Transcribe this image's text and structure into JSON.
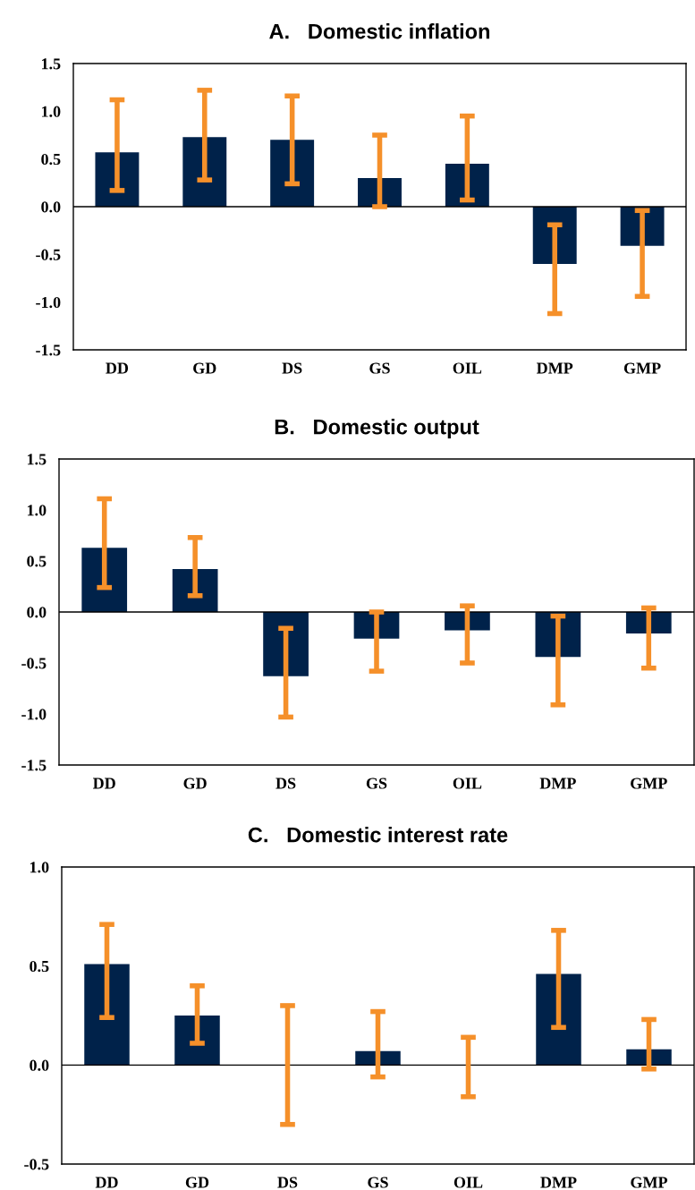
{
  "chart_data": [
    {
      "type": "bar",
      "title": "A.   Domestic inflation",
      "categories": [
        "DD",
        "GD",
        "DS",
        "GS",
        "OIL",
        "DMP",
        "GMP"
      ],
      "series": [
        {
          "color": "#00224a",
          "values": [
            0.57,
            0.73,
            0.7,
            0.3,
            0.45,
            -0.6,
            -0.41
          ],
          "errors": [
            [
              0.17,
              1.12
            ],
            [
              0.28,
              1.22
            ],
            [
              0.24,
              1.16
            ],
            [
              0.0,
              0.75
            ],
            [
              0.07,
              0.95
            ],
            [
              -1.12,
              -0.19
            ],
            [
              -0.94,
              -0.04
            ]
          ]
        }
      ],
      "ylim": [
        -1.5,
        1.5
      ],
      "yticks": [
        {
          "value": -1.5,
          "label": "-1.5"
        },
        {
          "value": -1.0,
          "label": "-1.0"
        },
        {
          "value": -0.5,
          "label": "-0.5"
        },
        {
          "value": 0.0,
          "label": "0.0"
        },
        {
          "value": 0.5,
          "label": "0.5"
        },
        {
          "value": 1.0,
          "label": "1.0"
        },
        {
          "value": 1.5,
          "label": "1.5"
        }
      ],
      "ref_lines": [
        {
          "axis": "y",
          "value": 0,
          "color": "#000000"
        }
      ]
    },
    {
      "type": "bar",
      "title": "B.   Domestic output",
      "categories": [
        "DD",
        "GD",
        "DS",
        "GS",
        "OIL",
        "DMP",
        "GMP"
      ],
      "series": [
        {
          "color": "#00224a",
          "values": [
            0.63,
            0.42,
            -0.63,
            -0.26,
            -0.18,
            -0.44,
            -0.21
          ],
          "errors": [
            [
              0.24,
              1.11
            ],
            [
              0.16,
              0.73
            ],
            [
              -1.03,
              -0.16
            ],
            [
              -0.58,
              0.0
            ],
            [
              -0.5,
              0.06
            ],
            [
              -0.91,
              -0.04
            ],
            [
              -0.55,
              0.04
            ]
          ]
        }
      ],
      "ylim": [
        -1.5,
        1.5
      ],
      "yticks": [
        {
          "value": -1.5,
          "label": "-1.5"
        },
        {
          "value": -1.0,
          "label": "-1.0"
        },
        {
          "value": -0.5,
          "label": "-0.5"
        },
        {
          "value": 0.0,
          "label": "0.0"
        },
        {
          "value": 0.5,
          "label": "0.5"
        },
        {
          "value": 1.0,
          "label": "1.0"
        },
        {
          "value": 1.5,
          "label": "1.5"
        }
      ],
      "ref_lines": [
        {
          "axis": "y",
          "value": 0,
          "color": "#000000"
        }
      ]
    },
    {
      "type": "bar",
      "title": "C.   Domestic interest rate",
      "categories": [
        "DD",
        "GD",
        "DS",
        "GS",
        "OIL",
        "DMP",
        "GMP"
      ],
      "series": [
        {
          "color": "#00224a",
          "values": [
            0.51,
            0.25,
            0.0,
            0.07,
            0.0,
            0.46,
            0.08
          ],
          "errors": [
            [
              0.24,
              0.71
            ],
            [
              0.11,
              0.4
            ],
            [
              -0.3,
              0.3
            ],
            [
              -0.06,
              0.27
            ],
            [
              -0.16,
              0.14
            ],
            [
              0.19,
              0.68
            ],
            [
              -0.02,
              0.23
            ]
          ]
        }
      ],
      "ylim": [
        -0.5,
        1.0
      ],
      "yticks": [
        {
          "value": -0.5,
          "label": "-0.5"
        },
        {
          "value": 0.0,
          "label": "0.0"
        },
        {
          "value": 0.5,
          "label": "0.5"
        },
        {
          "value": 1.0,
          "label": "1.0"
        }
      ],
      "ref_lines": [
        {
          "axis": "y",
          "value": 0,
          "color": "#000000"
        }
      ]
    }
  ]
}
